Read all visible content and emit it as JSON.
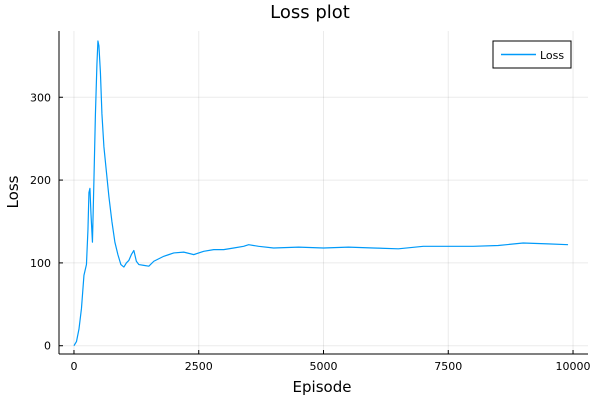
{
  "chart_data": {
    "type": "line",
    "title": "Loss plot",
    "xlabel": "Episode",
    "ylabel": "Loss",
    "xlim": [
      -300,
      10300
    ],
    "ylim": [
      -10,
      380
    ],
    "x_ticks": [
      0,
      2500,
      5000,
      7500,
      10000
    ],
    "x_tick_labels": [
      "0",
      "2500",
      "5000",
      "7500",
      "10000"
    ],
    "y_ticks": [
      0,
      100,
      200,
      300
    ],
    "y_tick_labels": [
      "0",
      "100",
      "200",
      "300"
    ],
    "grid": true,
    "legend_position": "top-right",
    "series": [
      {
        "name": "Loss",
        "color": "#009af9",
        "x": [
          0,
          50,
          100,
          150,
          200,
          250,
          280,
          300,
          320,
          340,
          370,
          400,
          430,
          460,
          480,
          500,
          530,
          560,
          600,
          650,
          700,
          760,
          820,
          880,
          940,
          1000,
          1050,
          1100,
          1150,
          1200,
          1250,
          1300,
          1400,
          1500,
          1600,
          1700,
          1800,
          1900,
          2000,
          2200,
          2400,
          2600,
          2800,
          3000,
          3200,
          3400,
          3500,
          3700,
          4000,
          4500,
          5000,
          5500,
          6000,
          6500,
          7000,
          7500,
          8000,
          8500,
          9000,
          9500,
          9900
        ],
        "y": [
          0,
          5,
          20,
          45,
          85,
          98,
          140,
          185,
          190,
          160,
          125,
          200,
          280,
          340,
          368,
          362,
          330,
          280,
          240,
          210,
          180,
          150,
          125,
          110,
          98,
          95,
          100,
          103,
          110,
          115,
          102,
          98,
          97,
          96,
          102,
          105,
          108,
          110,
          112,
          113,
          110,
          114,
          116,
          116,
          118,
          120,
          122,
          120,
          118,
          119,
          118,
          119,
          118,
          117,
          120,
          120,
          120,
          121,
          124,
          123,
          122
        ]
      }
    ]
  }
}
